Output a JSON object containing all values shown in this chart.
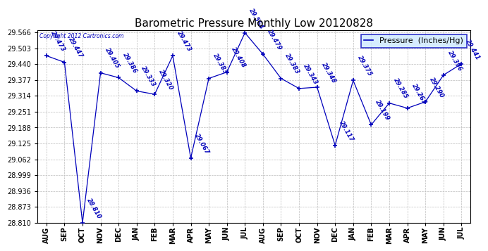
{
  "title": "Barometric Pressure Monthly Low 20120828",
  "legend_label": "Pressure  (Inches/Hg)",
  "copyright": "Copyright 2012 Cartronics.com",
  "months": [
    "AUG",
    "SEP",
    "OCT",
    "NOV",
    "DEC",
    "JAN",
    "FEB",
    "MAR",
    "APR",
    "MAY",
    "JUN",
    "JUL",
    "AUG",
    "SEP",
    "OCT",
    "NOV",
    "DEC",
    "JAN",
    "FEB",
    "MAR",
    "APR",
    "MAY",
    "JUN",
    "JUL"
  ],
  "values": [
    29.473,
    29.447,
    28.81,
    29.405,
    29.386,
    29.333,
    29.32,
    29.473,
    29.067,
    29.383,
    29.408,
    29.564,
    29.479,
    29.383,
    29.343,
    29.348,
    29.117,
    29.375,
    29.199,
    29.285,
    29.265,
    29.29,
    29.396,
    29.441
  ],
  "last_value": 29.39,
  "ylim_min": 28.81,
  "ylim_max": 29.574,
  "ytick_step": 0.063,
  "line_color": "#0000BB",
  "bg_color": "#ffffff",
  "grid_color": "#bbbbbb",
  "legend_bg": "#cce8ff",
  "title_fontsize": 11,
  "tick_fontsize": 7,
  "label_fontsize": 6,
  "legend_fontsize": 8
}
